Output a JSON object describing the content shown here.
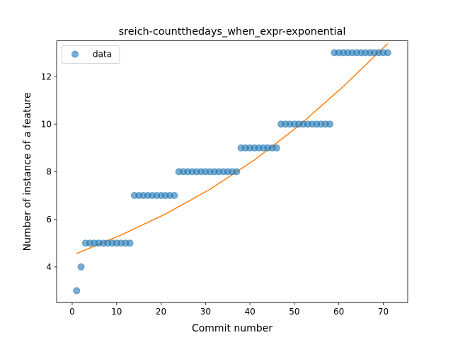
{
  "chart_data": {
    "type": "scatter",
    "title": "sreich-countthedays_when_expr-exponential",
    "xlabel": "Commit number",
    "ylabel": "Number of instance of a feature",
    "xlim": [
      -3.5,
      75.5
    ],
    "ylim": [
      2.5,
      13.5
    ],
    "xticks": [
      0,
      10,
      20,
      30,
      40,
      50,
      60,
      70
    ],
    "yticks": [
      4,
      6,
      8,
      10,
      12
    ],
    "grid": false,
    "legend": {
      "placement": "top-left",
      "entries": [
        "data"
      ]
    },
    "series": [
      {
        "name": "data",
        "kind": "scatter",
        "color": "#1f77b4",
        "x": [
          1,
          2,
          3,
          4,
          5,
          6,
          7,
          8,
          9,
          10,
          11,
          12,
          13,
          14,
          15,
          16,
          17,
          18,
          19,
          20,
          21,
          22,
          23,
          24,
          25,
          26,
          27,
          28,
          29,
          30,
          31,
          32,
          33,
          34,
          35,
          36,
          37,
          38,
          39,
          40,
          41,
          42,
          43,
          44,
          45,
          46,
          47,
          48,
          49,
          50,
          51,
          52,
          53,
          54,
          55,
          56,
          57,
          58,
          59,
          60,
          61,
          62,
          63,
          64,
          65,
          66,
          67,
          68,
          69,
          70,
          71
        ],
        "y": [
          3,
          4,
          5,
          5,
          5,
          5,
          5,
          5,
          5,
          5,
          5,
          5,
          5,
          7,
          7,
          7,
          7,
          7,
          7,
          7,
          7,
          7,
          7,
          8,
          8,
          8,
          8,
          8,
          8,
          8,
          8,
          8,
          8,
          8,
          8,
          8,
          8,
          9,
          9,
          9,
          9,
          9,
          9,
          9,
          9,
          9,
          10,
          10,
          10,
          10,
          10,
          10,
          10,
          10,
          10,
          10,
          10,
          10,
          13,
          13,
          13,
          13,
          13,
          13,
          13,
          13,
          13,
          13,
          13,
          13,
          13
        ]
      },
      {
        "kind": "line",
        "color": "#ff7f0e",
        "x": [
          1,
          11,
          21,
          31,
          41,
          51,
          61,
          71
        ],
        "y": [
          4.56,
          5.34,
          6.22,
          7.26,
          8.49,
          9.93,
          11.58,
          13.38
        ]
      }
    ]
  }
}
